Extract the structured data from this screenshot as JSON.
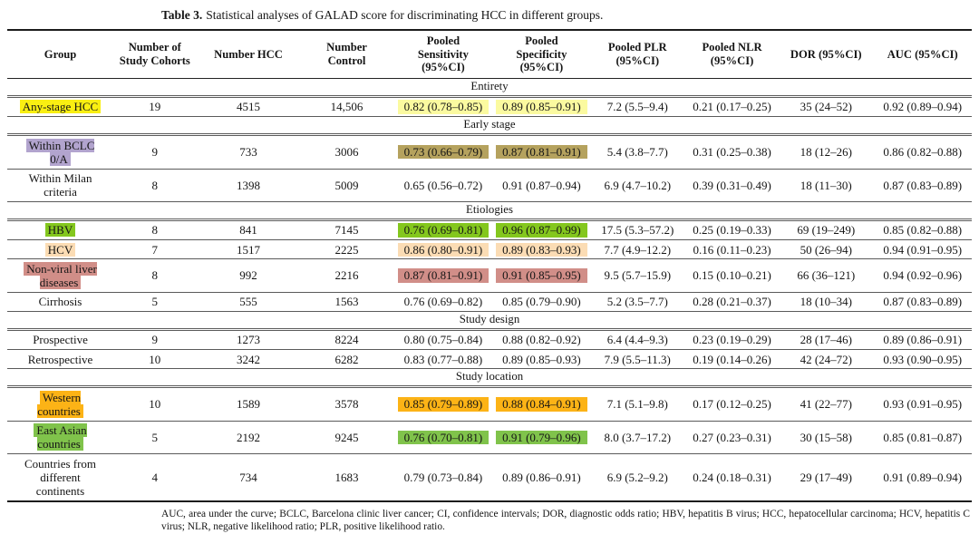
{
  "caption": {
    "label": "Table 3.",
    "text": "Statistical analyses of GALAD score for discriminating HCC in different groups."
  },
  "highlight_colors": {
    "yellow": "#f9ef12",
    "pale_yellow": "#fbfaa0",
    "lavender": "#b2a4ce",
    "khaki": "#b5a25e",
    "green": "#84c71e",
    "peach": "#fbdcb4",
    "rose": "#d18e88",
    "amber": "#fcb316",
    "leaf_green": "#80c34b"
  },
  "table": {
    "columns": [
      "Group",
      "Number of\nStudy Cohorts",
      "Number HCC",
      "Number\nControl",
      "Pooled\nSensitivity\n(95%CI)",
      "Pooled\nSpecificity\n(95%CI)",
      "Pooled PLR\n(95%CI)",
      "Pooled NLR\n(95%CI)",
      "DOR (95%CI)",
      "AUC (95%CI)"
    ],
    "sections": [
      {
        "header": "Entirety",
        "rows": [
          {
            "group": "Any-stage HCC",
            "group_highlight": "yellow",
            "cell_highlight": "pale_yellow",
            "highlight_cols": [
              3,
              4
            ],
            "cells": [
              "19",
              "4515",
              "14,506",
              "0.82 (0.78–0.85)",
              "0.89 (0.85–0.91)",
              "7.2 (5.5–9.4)",
              "0.21 (0.17–0.25)",
              "35 (24–52)",
              "0.92 (0.89–0.94)"
            ]
          }
        ]
      },
      {
        "header": "Early stage",
        "rows": [
          {
            "group": "Within BCLC\n0/A",
            "group_highlight": "lavender",
            "cell_highlight": "khaki",
            "highlight_cols": [
              3,
              4
            ],
            "cells": [
              "9",
              "733",
              "3006",
              "0.73 (0.66–0.79)",
              "0.87 (0.81–0.91)",
              "5.4 (3.8–7.7)",
              "0.31 (0.25–0.38)",
              "18 (12–26)",
              "0.86 (0.82–0.88)"
            ]
          },
          {
            "group": "Within Milan\ncriteria",
            "group_highlight": null,
            "cell_highlight": null,
            "highlight_cols": [],
            "cells": [
              "8",
              "1398",
              "5009",
              "0.65 (0.56–0.72)",
              "0.91 (0.87–0.94)",
              "6.9 (4.7–10.2)",
              "0.39 (0.31–0.49)",
              "18 (11–30)",
              "0.87 (0.83–0.89)"
            ]
          }
        ]
      },
      {
        "header": "Etiologies",
        "rows": [
          {
            "group": "HBV",
            "group_highlight": "green",
            "cell_highlight": "green",
            "highlight_cols": [
              3,
              4
            ],
            "cells": [
              "8",
              "841",
              "7145",
              "0.76 (0.69–0.81)",
              "0.96 (0.87–0.99)",
              "17.5 (5.3–57.2)",
              "0.25 (0.19–0.33)",
              "69 (19–249)",
              "0.85 (0.82–0.88)"
            ]
          },
          {
            "group": "HCV",
            "group_highlight": "peach",
            "cell_highlight": "peach",
            "highlight_cols": [
              3,
              4
            ],
            "cells": [
              "7",
              "1517",
              "2225",
              "0.86 (0.80–0.91)",
              "0.89 (0.83–0.93)",
              "7.7 (4.9–12.2)",
              "0.16 (0.11–0.23)",
              "50 (26–94)",
              "0.94 (0.91–0.95)"
            ]
          },
          {
            "group": "Non-viral liver\ndiseases",
            "group_highlight": "rose",
            "cell_highlight": "rose",
            "highlight_cols": [
              3,
              4
            ],
            "cells": [
              "8",
              "992",
              "2216",
              "0.87 (0.81–0.91)",
              "0.91 (0.85–0.95)",
              "9.5 (5.7–15.9)",
              "0.15 (0.10–0.21)",
              "66 (36–121)",
              "0.94 (0.92–0.96)"
            ]
          },
          {
            "group": "Cirrhosis",
            "group_highlight": null,
            "cell_highlight": null,
            "highlight_cols": [],
            "cells": [
              "5",
              "555",
              "1563",
              "0.76 (0.69–0.82)",
              "0.85 (0.79–0.90)",
              "5.2 (3.5–7.7)",
              "0.28 (0.21–0.37)",
              "18 (10–34)",
              "0.87 (0.83–0.89)"
            ]
          }
        ]
      },
      {
        "header": "Study design",
        "rows": [
          {
            "group": "Prospective",
            "group_highlight": null,
            "cell_highlight": null,
            "highlight_cols": [],
            "cells": [
              "9",
              "1273",
              "8224",
              "0.80 (0.75–0.84)",
              "0.88 (0.82–0.92)",
              "6.4 (4.4–9.3)",
              "0.23 (0.19–0.29)",
              "28 (17–46)",
              "0.89 (0.86–0.91)"
            ]
          },
          {
            "group": "Retrospective",
            "group_highlight": null,
            "cell_highlight": null,
            "highlight_cols": [],
            "cells": [
              "10",
              "3242",
              "6282",
              "0.83 (0.77–0.88)",
              "0.89 (0.85–0.93)",
              "7.9 (5.5–11.3)",
              "0.19 (0.14–0.26)",
              "42 (24–72)",
              "0.93 (0.90–0.95)"
            ]
          }
        ]
      },
      {
        "header": "Study location",
        "rows": [
          {
            "group": "Western\ncountries",
            "group_highlight": "amber",
            "cell_highlight": "amber",
            "highlight_cols": [
              3,
              4
            ],
            "cells": [
              "10",
              "1589",
              "3578",
              "0.85 (0.79–0.89)",
              "0.88 (0.84–0.91)",
              "7.1 (5.1–9.8)",
              "0.17 (0.12–0.25)",
              "41 (22–77)",
              "0.93 (0.91–0.95)"
            ]
          },
          {
            "group": "East Asian\ncountries",
            "group_highlight": "leaf_green",
            "cell_highlight": "leaf_green",
            "highlight_cols": [
              3,
              4
            ],
            "cells": [
              "5",
              "2192",
              "9245",
              "0.76 (0.70–0.81)",
              "0.91 (0.79–0.96)",
              "8.0 (3.7–17.2)",
              "0.27 (0.23–0.31)",
              "30 (15–58)",
              "0.85 (0.81–0.87)"
            ]
          },
          {
            "group": "Countries from\ndifferent\ncontinents",
            "group_highlight": null,
            "cell_highlight": null,
            "highlight_cols": [],
            "cells": [
              "4",
              "734",
              "1683",
              "0.79 (0.73–0.84)",
              "0.89 (0.86–0.91)",
              "6.9 (5.2–9.2)",
              "0.24 (0.18–0.31)",
              "29 (17–49)",
              "0.91 (0.89–0.94)"
            ]
          }
        ]
      }
    ]
  },
  "footnote": "AUC, area under the curve; BCLC, Barcelona clinic liver cancer; CI, confidence intervals; DOR, diagnostic odds ratio; HBV, hepatitis B virus; HCC, hepatocellular carcinoma; HCV, hepatitis C virus; NLR, negative likelihood ratio; PLR, positive likelihood ratio."
}
